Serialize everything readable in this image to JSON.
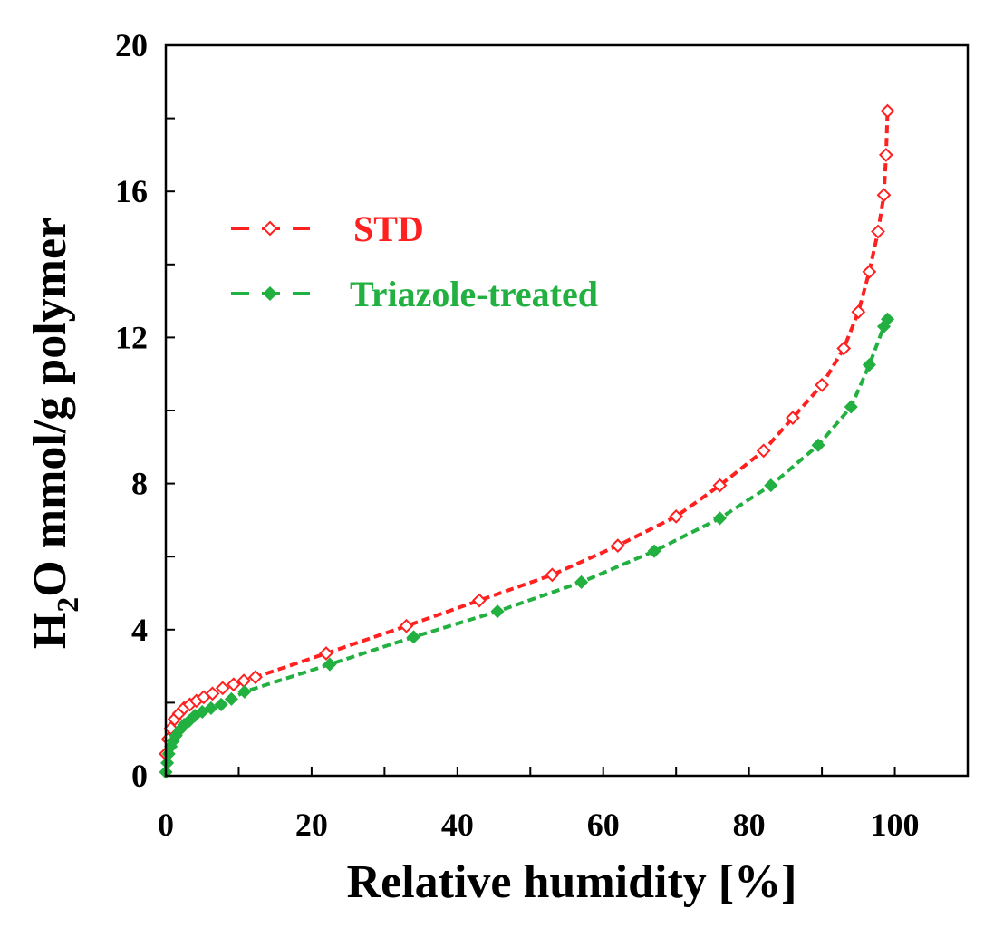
{
  "chart_data": {
    "type": "line",
    "title": "",
    "xlabel": "Relative humidity [%]",
    "ylabel_parts": {
      "base": "H",
      "subscript": "2",
      "rest": "O mmol/g polymer"
    },
    "xlim": [
      0,
      110
    ],
    "ylim": [
      0,
      20
    ],
    "xticks": [
      0,
      20,
      40,
      60,
      80,
      100
    ],
    "yticks": [
      0,
      4,
      8,
      12,
      16,
      20
    ],
    "grid": false,
    "legend_position": "upper-left",
    "series": [
      {
        "name": "STD",
        "color": "#ff2020",
        "marker": "open-diamond",
        "line_style": "dashed",
        "x": [
          0,
          0.3,
          0.7,
          1.2,
          1.8,
          2.5,
          3.3,
          4.2,
          5.2,
          6.4,
          7.8,
          9.3,
          10.7,
          12.3,
          22,
          33,
          43,
          53,
          62,
          70,
          76,
          82,
          86,
          90,
          93,
          95,
          96.5,
          97.7,
          98.5,
          98.8,
          99
        ],
        "y": [
          0.6,
          1.0,
          1.3,
          1.55,
          1.7,
          1.85,
          1.95,
          2.05,
          2.15,
          2.25,
          2.4,
          2.5,
          2.6,
          2.7,
          3.35,
          4.1,
          4.8,
          5.5,
          6.3,
          7.1,
          7.95,
          8.9,
          9.8,
          10.7,
          11.7,
          12.7,
          13.8,
          14.9,
          15.9,
          17.0,
          18.2
        ]
      },
      {
        "name": "Triazole-treated",
        "color": "#22b040",
        "marker": "filled-diamond",
        "line_style": "dashed",
        "x": [
          0,
          0.2,
          0.4,
          0.7,
          1.0,
          1.4,
          1.9,
          2.5,
          3.2,
          4.0,
          5.0,
          6.2,
          7.6,
          9.0,
          10.8,
          22.5,
          34,
          45.5,
          57,
          67,
          76,
          83,
          89.5,
          94,
          96.5,
          98.5,
          99
        ],
        "y": [
          0.1,
          0.35,
          0.6,
          0.8,
          0.95,
          1.1,
          1.25,
          1.4,
          1.5,
          1.65,
          1.75,
          1.85,
          1.95,
          2.1,
          2.3,
          3.05,
          3.8,
          4.5,
          5.3,
          6.15,
          7.05,
          7.95,
          9.05,
          10.1,
          11.25,
          12.3,
          12.5
        ]
      }
    ]
  }
}
